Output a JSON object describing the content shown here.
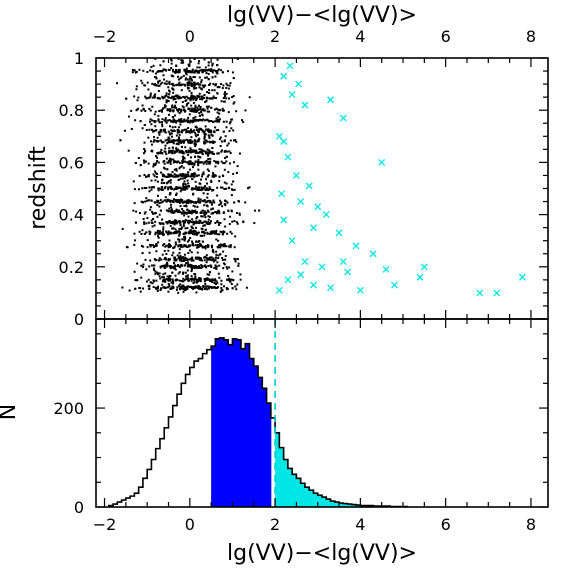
{
  "chart_data": [
    {
      "panel": "top",
      "type": "scatter",
      "xlabel": "lg(VV)−<lg(VV)>",
      "ylabel": "redshift",
      "xlim": [
        -2.2,
        8.4
      ],
      "ylim": [
        0,
        1
      ],
      "x_ticks": [
        -2,
        0,
        2,
        4,
        6,
        8
      ],
      "y_ticks": [
        0,
        0.2,
        0.4,
        0.6,
        0.8,
        1
      ],
      "y_tick_labels": [
        "0",
        "0.2",
        "0.4",
        "0.6",
        "0.8",
        "1"
      ],
      "series": [
        {
          "marker": "dot",
          "color": "#000000",
          "x_range": [
            -2,
            2
          ],
          "y_range": [
            0.1,
            1
          ],
          "approx_count": 3000
        },
        {
          "marker": "cross",
          "color": "#00e5e5",
          "points": [
            [
              2.2,
              0.93
            ],
            [
              2.35,
              0.97
            ],
            [
              2.55,
              0.9
            ],
            [
              2.4,
              0.86
            ],
            [
              2.7,
              0.82
            ],
            [
              3.3,
              0.84
            ],
            [
              3.6,
              0.77
            ],
            [
              2.1,
              0.7
            ],
            [
              2.2,
              0.68
            ],
            [
              4.5,
              0.6
            ],
            [
              2.3,
              0.62
            ],
            [
              2.5,
              0.55
            ],
            [
              2.8,
              0.51
            ],
            [
              2.15,
              0.48
            ],
            [
              2.6,
              0.45
            ],
            [
              3.0,
              0.43
            ],
            [
              3.2,
              0.4
            ],
            [
              2.2,
              0.38
            ],
            [
              2.9,
              0.35
            ],
            [
              3.5,
              0.33
            ],
            [
              2.4,
              0.3
            ],
            [
              3.9,
              0.28
            ],
            [
              4.3,
              0.25
            ],
            [
              2.7,
              0.22
            ],
            [
              3.1,
              0.2
            ],
            [
              3.7,
              0.18
            ],
            [
              5.5,
              0.2
            ],
            [
              2.3,
              0.15
            ],
            [
              2.9,
              0.13
            ],
            [
              3.3,
              0.12
            ],
            [
              4.0,
              0.11
            ],
            [
              4.8,
              0.13
            ],
            [
              5.4,
              0.16
            ],
            [
              6.8,
              0.1
            ],
            [
              7.2,
              0.1
            ],
            [
              7.8,
              0.16
            ],
            [
              2.1,
              0.11
            ],
            [
              2.6,
              0.17
            ],
            [
              3.6,
              0.22
            ],
            [
              4.6,
              0.19
            ]
          ]
        }
      ]
    },
    {
      "panel": "bottom",
      "type": "histogram",
      "xlabel": "lg(VV)−<lg(VV)>",
      "ylabel": "N",
      "xlim": [
        -2.2,
        8.4
      ],
      "ylim": [
        0,
        380
      ],
      "x_ticks": [
        -2,
        0,
        2,
        4,
        6,
        8
      ],
      "y_ticks": [
        0,
        200
      ],
      "bin_width": 0.1,
      "bin_start": -1.9,
      "counts": [
        3,
        6,
        10,
        14,
        18,
        22,
        28,
        40,
        58,
        76,
        96,
        118,
        138,
        160,
        182,
        205,
        228,
        250,
        268,
        282,
        295,
        300,
        310,
        318,
        325,
        340,
        342,
        338,
        328,
        340,
        338,
        320,
        330,
        300,
        285,
        262,
        240,
        210,
        180,
        150,
        120,
        96,
        78,
        66,
        58,
        48,
        40,
        34,
        28,
        24,
        20,
        16,
        12,
        10,
        8,
        7,
        6,
        5,
        4,
        3,
        3,
        3,
        2,
        2,
        2,
        2,
        1,
        1,
        1,
        1
      ],
      "fill_ranges": [
        {
          "from": 0.5,
          "to": 1.9,
          "color": "#0000ff"
        },
        {
          "from": 2.0,
          "to": 8.4,
          "color": "#00e5e5"
        }
      ],
      "annotations": [
        {
          "type": "vline",
          "x": 2,
          "style": "dashed",
          "color": "#00d0d0"
        }
      ]
    }
  ]
}
